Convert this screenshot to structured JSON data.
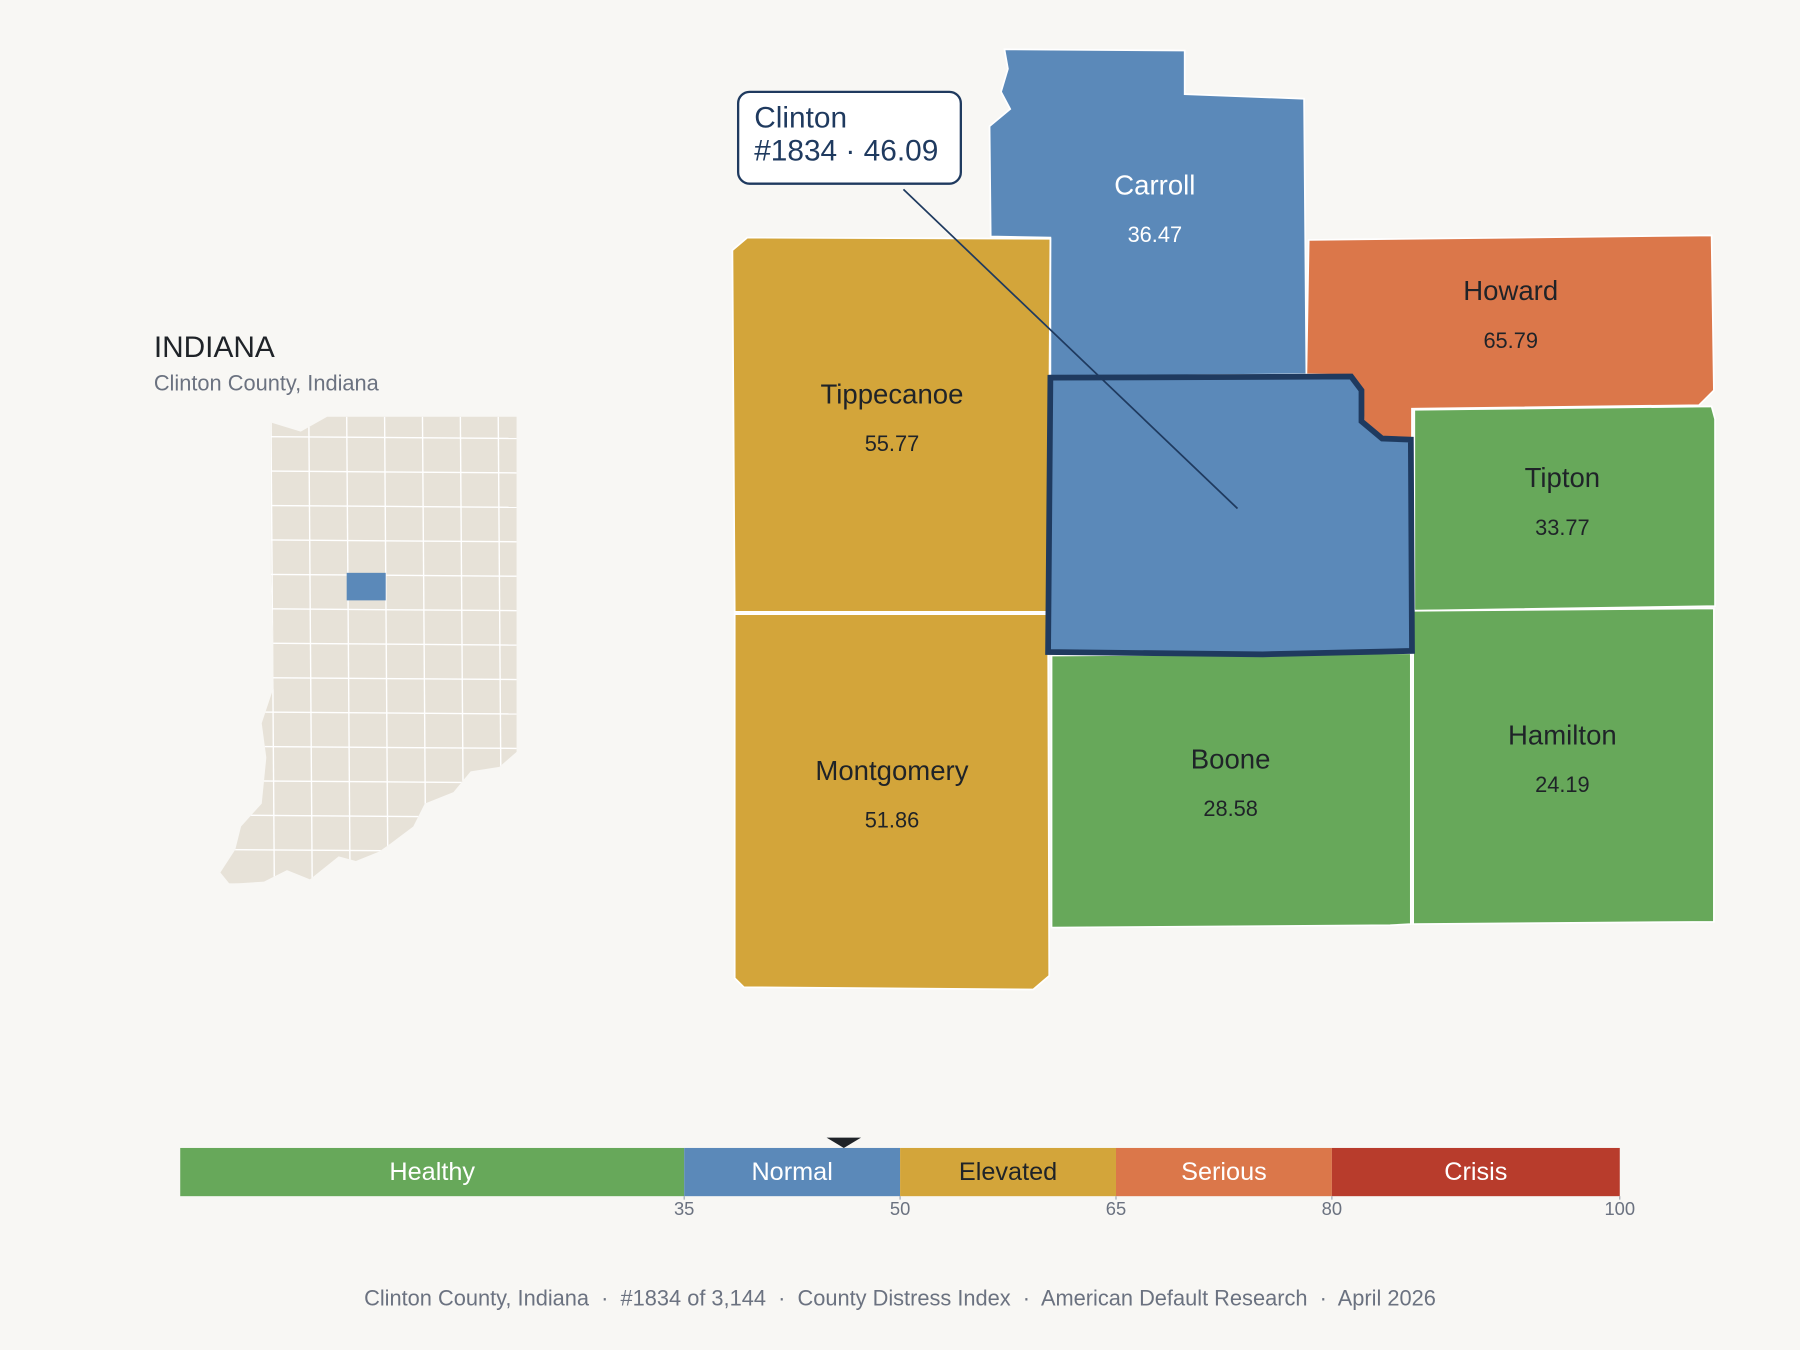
{
  "header": {
    "title": "INDIANA",
    "subtitle": "Clinton County, Indiana"
  },
  "counties": [
    {
      "name": "Carroll",
      "value": 36.47,
      "label_color": "#ffffff"
    },
    {
      "name": "Howard",
      "value": 65.79,
      "label_color": "#1f2328"
    },
    {
      "name": "Tippecanoe",
      "value": 55.77,
      "label_color": "#1f2328"
    },
    {
      "name": "Tipton",
      "value": 33.77,
      "label_color": "#1f2328"
    },
    {
      "name": "Montgomery",
      "value": 51.86,
      "label_color": "#1f2328"
    },
    {
      "name": "Boone",
      "value": 28.58,
      "label_color": "#1f2328"
    },
    {
      "name": "Hamilton",
      "value": 24.19,
      "label_color": "#1f2328"
    },
    {
      "name": "Clinton",
      "value": 46.09
    }
  ],
  "callout": {
    "lines": [
      "Clinton",
      "#1834 · 46.09"
    ]
  },
  "scale": {
    "bands": [
      {
        "label": "Healthy",
        "color": "#67a85a",
        "label_color": "#ffffff"
      },
      {
        "label": "Normal",
        "color": "#5b89b9",
        "label_color": "#ffffff"
      },
      {
        "label": "Elevated",
        "color": "#d3a53a",
        "label_color": "#1f2328"
      },
      {
        "label": "Serious",
        "color": "#db774a",
        "label_color": "#ffffff"
      },
      {
        "label": "Crisis",
        "color": "#b83c2c",
        "label_color": "#ffffff"
      }
    ],
    "ticks": [
      35,
      50,
      65,
      80,
      100
    ]
  },
  "footer": "Clinton County, Indiana  ·  #1834 of 3,144  ·  County Distress Index  ·  American Default Research  ·  April 2026"
}
